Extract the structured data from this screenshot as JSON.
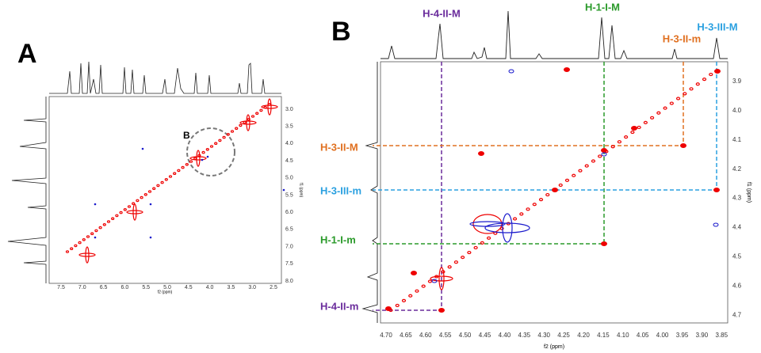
{
  "panel_a": {
    "label": "A",
    "inset_label": "B",
    "x_axis": {
      "title": "f2 (ppm)",
      "ticks": [
        "7.5",
        "7.0",
        "6.5",
        "6.0",
        "5.5",
        "5.0",
        "4.5",
        "4.0",
        "3.5",
        "3.0",
        "2.5"
      ]
    },
    "y_axis": {
      "title": "f1 (ppm)",
      "ticks": [
        "3.0",
        "3.5",
        "4.0",
        "4.5",
        "5.0",
        "5.5",
        "6.0",
        "6.5",
        "7.0",
        "7.5",
        "8.0"
      ]
    }
  },
  "panel_b": {
    "label": "B",
    "x_axis": {
      "title": "f2 (ppm)",
      "ticks": [
        "4.70",
        "4.65",
        "4.60",
        "4.55",
        "4.50",
        "4.45",
        "4.40",
        "4.35",
        "4.30",
        "4.25",
        "4.20",
        "4.15",
        "4.10",
        "4.05",
        "4.00",
        "3.95",
        "3.90",
        "3.85"
      ]
    },
    "y_axis": {
      "title": "f1 (ppm)",
      "ticks": [
        "3.9",
        "4.0",
        "4.1",
        "4.2",
        "4.3",
        "4.4",
        "4.5",
        "4.6",
        "4.7"
      ]
    },
    "annotations": {
      "top": [
        "H-4-II-M",
        "H-1-I-M",
        "H-3-II-m",
        "H-3-III-M"
      ],
      "left": [
        "H-3-II-M",
        "H-3-III-m",
        "H-1-I-m",
        "H-4-II-m"
      ]
    }
  }
}
